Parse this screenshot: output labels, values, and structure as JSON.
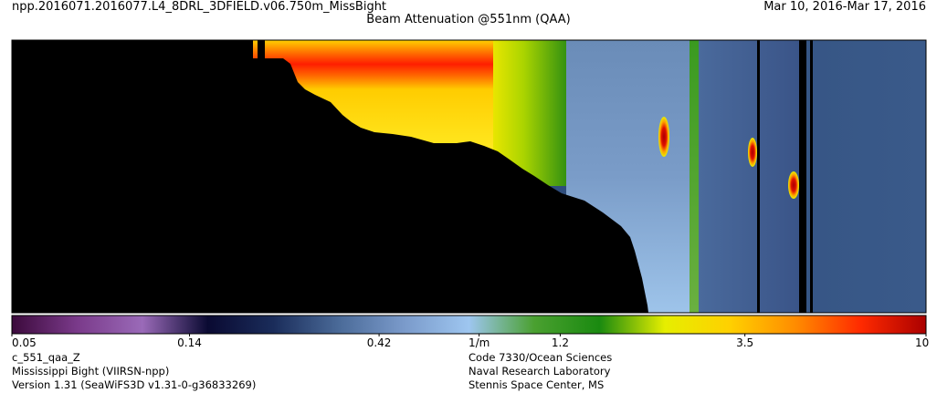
{
  "header": {
    "filename": "npp.2016071.2016077.L4_8DRL_3DFIELD.v06.750m_MissBight",
    "date_range": "Mar 10, 2016-Mar 17, 2016",
    "title": "Beam Attenuation @551nm (QAA)"
  },
  "footer": {
    "left": [
      "c_551_qaa_Z",
      "Mississippi Bight (VIIRSN-npp)",
      "Version 1.31 (SeaWiFS3D v1.31-0-g36833269)"
    ],
    "right": [
      "Code 7330/Ocean Sciences",
      "Naval Research Laboratory",
      "Stennis Space Center, MS"
    ]
  },
  "chart_data": {
    "type": "heatmap",
    "title": "Beam Attenuation @551nm (QAA)",
    "colorbar": {
      "scale": "log",
      "range": [
        0.05,
        10
      ],
      "ticks": [
        {
          "value": 0.05,
          "label": "0.05"
        },
        {
          "value": 0.14,
          "label": "0.14"
        },
        {
          "value": 0.42,
          "label": "0.42"
        },
        {
          "value": 0.75,
          "label": "1/m"
        },
        {
          "value": 1.2,
          "label": "1.2"
        },
        {
          "value": 3.5,
          "label": "3.5"
        },
        {
          "value": 10,
          "label": "10"
        }
      ]
    },
    "features": [
      {
        "name": "surface-high-attenuation-band",
        "peak_value": 4.5
      },
      {
        "name": "subsurface-patch-1",
        "peak_value": 10
      },
      {
        "name": "subsurface-patch-2",
        "peak_value": 10
      },
      {
        "name": "subsurface-patch-3",
        "peak_value": 10
      }
    ],
    "colors": {
      "nodata": "#000000",
      "stops": [
        "#3c0a3c",
        "#7a3a8a",
        "#9a6ab8",
        "#0a0a32",
        "#1a2c5a",
        "#4a6a98",
        "#7a9aca",
        "#9ec6f0",
        "#4aa030",
        "#1a8a10",
        "#e6ee00",
        "#ffd000",
        "#ff8c00",
        "#ff2a00",
        "#aa0000"
      ]
    }
  }
}
